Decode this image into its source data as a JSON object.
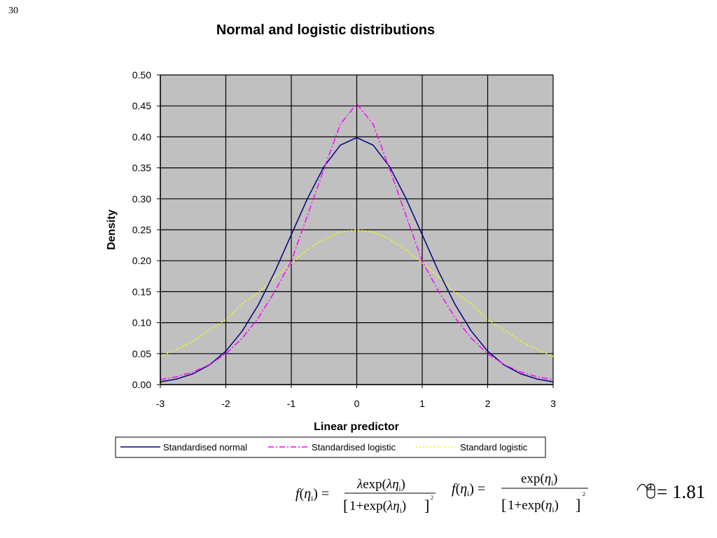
{
  "slide": {
    "number": "30"
  },
  "chart_data": {
    "type": "line",
    "title": "Normal and logistic distributions",
    "xlabel": "Linear predictor",
    "ylabel": "Density",
    "xlim": [
      -3,
      3
    ],
    "ylim": [
      0,
      0.5
    ],
    "xticks": [
      "-3",
      "-2",
      "-1",
      "0",
      "1",
      "2",
      "3"
    ],
    "yticks": [
      "0.00",
      "0.05",
      "0.10",
      "0.15",
      "0.20",
      "0.25",
      "0.30",
      "0.35",
      "0.40",
      "0.45",
      "0.50"
    ],
    "grid": true,
    "plot_background": "#c0c0c0",
    "legend_position": "bottom",
    "series": [
      {
        "name": "Standardised normal",
        "color": "#000080",
        "style": "solid",
        "x": [
          -3,
          -2.75,
          -2.5,
          -2.25,
          -2,
          -1.75,
          -1.5,
          -1.25,
          -1,
          -0.75,
          -0.5,
          -0.25,
          0,
          0.25,
          0.5,
          0.75,
          1,
          1.25,
          1.5,
          1.75,
          2,
          2.25,
          2.5,
          2.75,
          3
        ],
        "y": [
          0.0044,
          0.0091,
          0.0175,
          0.0317,
          0.054,
          0.0863,
          0.1295,
          0.1826,
          0.242,
          0.3011,
          0.3521,
          0.3867,
          0.3989,
          0.3867,
          0.3521,
          0.3011,
          0.242,
          0.1826,
          0.1295,
          0.0863,
          0.054,
          0.0317,
          0.0175,
          0.0091,
          0.0044
        ]
      },
      {
        "name": "Standardised logistic",
        "color": "#ff00ff",
        "style": "dash-dot",
        "x": [
          -3,
          -2.75,
          -2.5,
          -2.25,
          -2,
          -1.75,
          -1.5,
          -1.25,
          -1,
          -0.75,
          -0.5,
          -0.25,
          0,
          0.25,
          0.5,
          0.75,
          1,
          1.25,
          1.5,
          1.75,
          2,
          2.25,
          2.5,
          2.75,
          3
        ],
        "y": [
          0.0079,
          0.0128,
          0.0205,
          0.0323,
          0.0498,
          0.0748,
          0.1083,
          0.1507,
          0.1994,
          0.2739,
          0.3485,
          0.4206,
          0.4534,
          0.4206,
          0.3485,
          0.2739,
          0.1994,
          0.1507,
          0.1083,
          0.0748,
          0.0498,
          0.0323,
          0.0205,
          0.0128,
          0.0079
        ]
      },
      {
        "name": "Standard logistic",
        "color": "#ffff00",
        "style": "dotted",
        "x": [
          -3,
          -2.75,
          -2.5,
          -2.25,
          -2,
          -1.75,
          -1.5,
          -1.25,
          -1,
          -0.75,
          -0.5,
          -0.25,
          0,
          0.25,
          0.5,
          0.75,
          1,
          1.25,
          1.5,
          1.75,
          2,
          2.25,
          2.5,
          2.75,
          3
        ],
        "y": [
          0.0452,
          0.0571,
          0.0701,
          0.0881,
          0.105,
          0.1303,
          0.1491,
          0.1738,
          0.1966,
          0.2179,
          0.235,
          0.2461,
          0.25,
          0.2461,
          0.235,
          0.2179,
          0.1966,
          0.1738,
          0.1491,
          0.1303,
          0.105,
          0.0881,
          0.0701,
          0.0571,
          0.0452
        ]
      }
    ]
  },
  "formulas": {
    "left": {
      "f": "f",
      "eta": "η",
      "sub": "i",
      "lambda": "λ",
      "exp": "exp",
      "one_plus_exp": "1+exp",
      "power": "2"
    },
    "right": {
      "f": "f",
      "eta": "η",
      "sub": "i",
      "exp": "exp",
      "one_plus_exp": "1+exp",
      "power": "2"
    },
    "lambda_value": "= 1.81"
  }
}
